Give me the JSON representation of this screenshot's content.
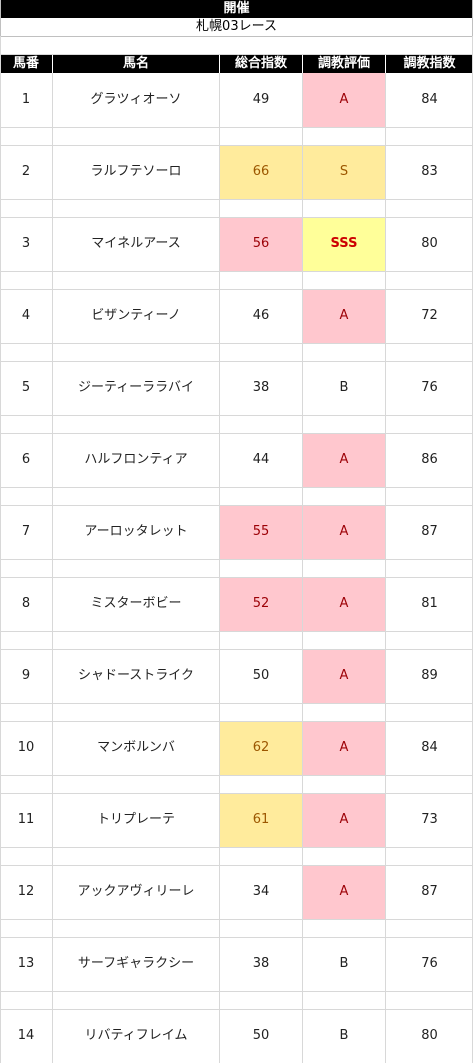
{
  "header": {
    "title": "開催",
    "race": "札幌03レース"
  },
  "columns": [
    "馬番",
    "馬名",
    "総合指数",
    "調教評価",
    "調教指数"
  ],
  "highlight_colors": {
    "pink": "#ffc7ce",
    "yellow": "#ffeb9c",
    "bright": "#ffff99"
  },
  "rows": [
    {
      "num": "1",
      "name": "グラツィオーソ",
      "total": "49",
      "total_hl": "",
      "eval": "A",
      "eval_hl": "pink",
      "train": "84"
    },
    {
      "num": "2",
      "name": "ラルフテソーロ",
      "total": "66",
      "total_hl": "yellow",
      "eval": "S",
      "eval_hl": "yellow",
      "train": "83"
    },
    {
      "num": "3",
      "name": "マイネルアース",
      "total": "56",
      "total_hl": "pink",
      "eval": "SSS",
      "eval_hl": "bright",
      "train": "80"
    },
    {
      "num": "4",
      "name": "ビザンティーノ",
      "total": "46",
      "total_hl": "",
      "eval": "A",
      "eval_hl": "pink",
      "train": "72"
    },
    {
      "num": "5",
      "name": "ジーティーララバイ",
      "total": "38",
      "total_hl": "",
      "eval": "B",
      "eval_hl": "",
      "train": "76"
    },
    {
      "num": "6",
      "name": "ハルフロンティア",
      "total": "44",
      "total_hl": "",
      "eval": "A",
      "eval_hl": "pink",
      "train": "86"
    },
    {
      "num": "7",
      "name": "アーロッタレット",
      "total": "55",
      "total_hl": "pink",
      "eval": "A",
      "eval_hl": "pink",
      "train": "87"
    },
    {
      "num": "8",
      "name": "ミスターボビー",
      "total": "52",
      "total_hl": "pink",
      "eval": "A",
      "eval_hl": "pink",
      "train": "81"
    },
    {
      "num": "9",
      "name": "シャドーストライク",
      "total": "50",
      "total_hl": "",
      "eval": "A",
      "eval_hl": "pink",
      "train": "89"
    },
    {
      "num": "10",
      "name": "マンボルンバ",
      "total": "62",
      "total_hl": "yellow",
      "eval": "A",
      "eval_hl": "pink",
      "train": "84"
    },
    {
      "num": "11",
      "name": "トリプレーテ",
      "total": "61",
      "total_hl": "yellow",
      "eval": "A",
      "eval_hl": "pink",
      "train": "73"
    },
    {
      "num": "12",
      "name": "アックアヴィリーレ",
      "total": "34",
      "total_hl": "",
      "eval": "A",
      "eval_hl": "pink",
      "train": "87"
    },
    {
      "num": "13",
      "name": "サーフギャラクシー",
      "total": "38",
      "total_hl": "",
      "eval": "B",
      "eval_hl": "",
      "train": "76"
    },
    {
      "num": "14",
      "name": "リバティフレイム",
      "total": "50",
      "total_hl": "",
      "eval": "B",
      "eval_hl": "",
      "train": "80"
    }
  ]
}
